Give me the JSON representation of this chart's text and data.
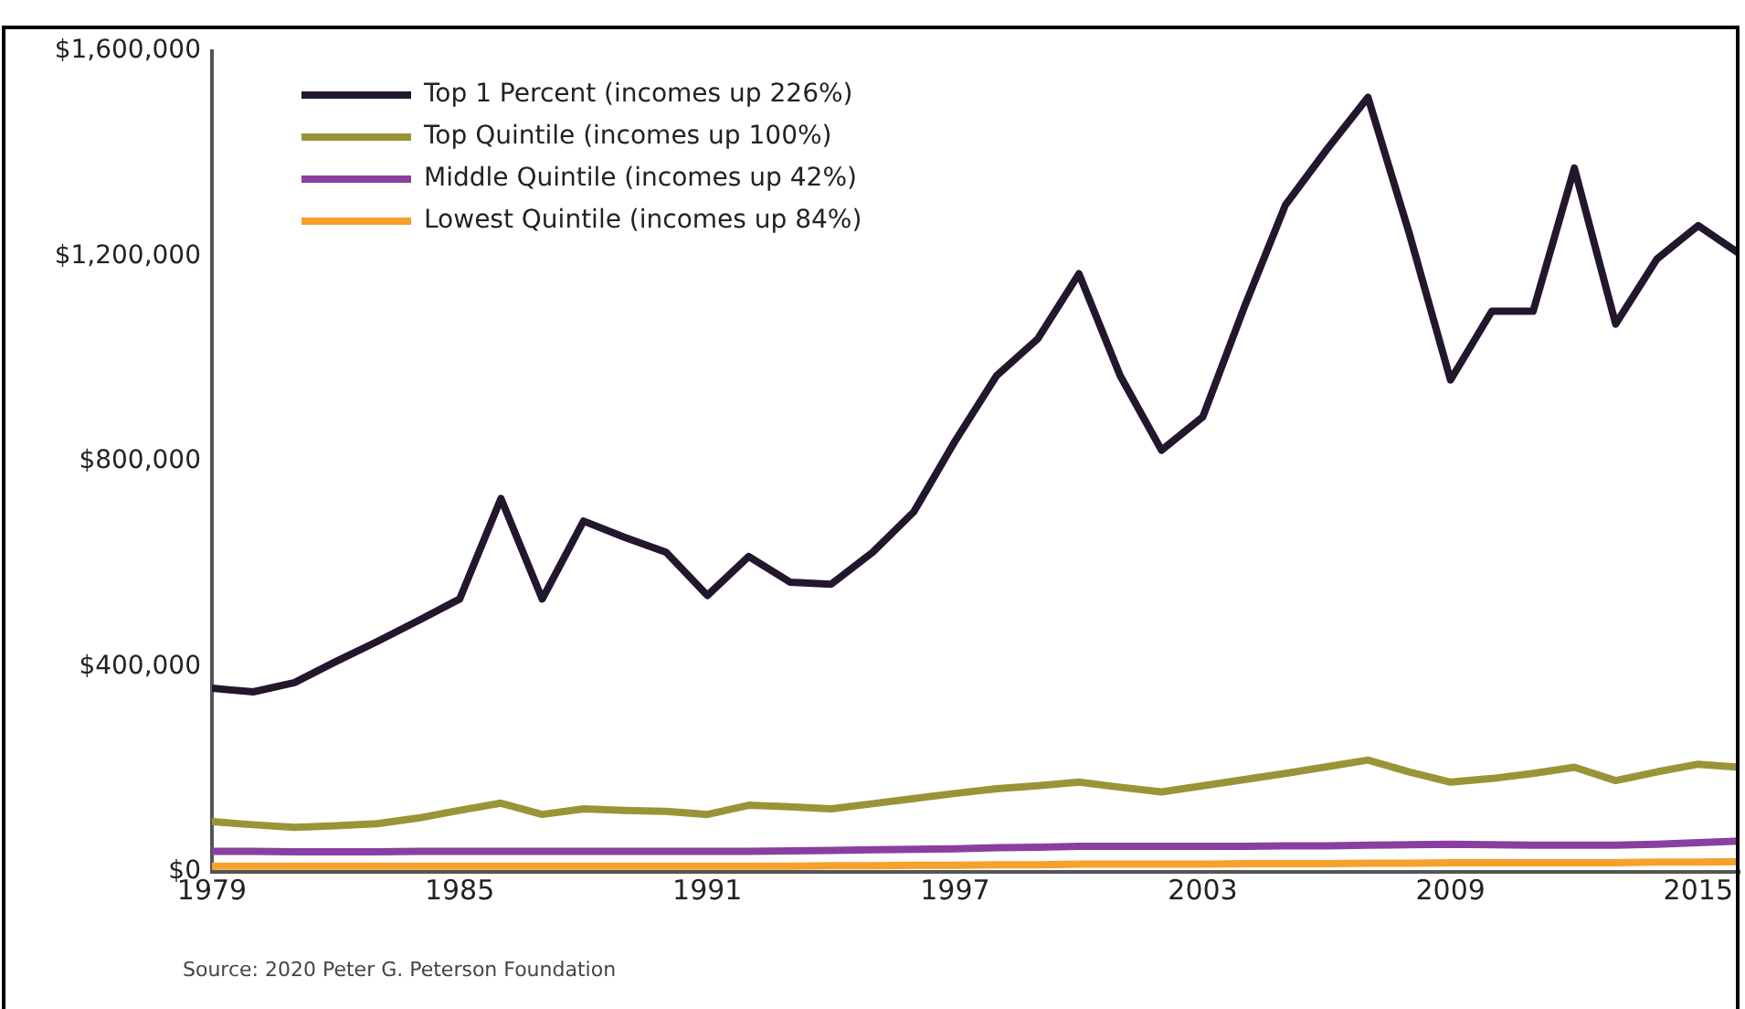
{
  "chart_data": {
    "type": "line",
    "x": [
      1979,
      1980,
      1981,
      1982,
      1983,
      1984,
      1985,
      1986,
      1987,
      1988,
      1989,
      1990,
      1991,
      1992,
      1993,
      1994,
      1995,
      1996,
      1997,
      1998,
      1999,
      2000,
      2001,
      2002,
      2003,
      2004,
      2005,
      2006,
      2007,
      2008,
      2009,
      2010,
      2011,
      2012,
      2013,
      2014,
      2015,
      2016
    ],
    "series": [
      {
        "name": "Top 1 Percent (incomes up 226%)",
        "color": "#23172e",
        "values": [
          358000,
          351000,
          369000,
          410000,
          449000,
          490000,
          532000,
          728000,
          532000,
          684000,
          652000,
          623000,
          539000,
          615000,
          565000,
          561000,
          623000,
          702000,
          840000,
          967000,
          1039000,
          1166000,
          967000,
          822000,
          887000,
          1100000,
          1300000,
          1408000,
          1510000,
          1245000,
          959000,
          1093000,
          1093000,
          1372000,
          1068000,
          1195000,
          1260000,
          1205000
        ]
      },
      {
        "name": "Top Quintile (incomes up 100%)",
        "color": "#9a9438",
        "values": [
          98000,
          92000,
          87000,
          90000,
          94000,
          105000,
          120000,
          134000,
          112000,
          123000,
          120000,
          118000,
          112000,
          130000,
          127000,
          123000,
          133000,
          143000,
          153000,
          162000,
          168000,
          175000,
          165000,
          156000,
          168000,
          180000,
          192000,
          205000,
          218000,
          195000,
          175000,
          182000,
          192000,
          204000,
          178000,
          195000,
          210000,
          204000
        ]
      },
      {
        "name": "Middle Quintile (incomes up 42%)",
        "color": "#8a3fa0",
        "values": [
          40000,
          40000,
          39000,
          39000,
          39000,
          40000,
          40000,
          40000,
          40000,
          40000,
          40000,
          40000,
          40000,
          40000,
          41000,
          42000,
          43000,
          44000,
          45000,
          47000,
          48000,
          50000,
          50000,
          50000,
          50000,
          50000,
          51000,
          51000,
          52000,
          53000,
          54000,
          53000,
          52000,
          52000,
          52000,
          54000,
          57000,
          60000
        ]
      },
      {
        "name": "Lowest Quintile (incomes up 84%)",
        "color": "#f7a02c",
        "values": [
          11000,
          11000,
          11000,
          11000,
          11000,
          11000,
          11000,
          11000,
          11000,
          11000,
          11000,
          11000,
          11000,
          11000,
          11000,
          12000,
          12000,
          13000,
          13000,
          14000,
          14000,
          15000,
          15000,
          15000,
          15000,
          16000,
          16000,
          16000,
          17000,
          17000,
          18000,
          18000,
          18000,
          18000,
          18000,
          19000,
          19000,
          20000
        ]
      }
    ],
    "xlim": [
      1979,
      2016
    ],
    "xticks": [
      1979,
      1985,
      1991,
      1997,
      2003,
      2009,
      2015
    ],
    "ylim": [
      0,
      1600000
    ],
    "yticks": [
      {
        "value": 0,
        "label": "$0"
      },
      {
        "value": 400000,
        "label": "$400,000"
      },
      {
        "value": 800000,
        "label": "$800,000"
      },
      {
        "value": 1200000,
        "label": "$1,200,000"
      },
      {
        "value": 1600000,
        "label": "$1,600,000"
      }
    ],
    "grid": false,
    "legend": "top left",
    "marker": "none",
    "line_style": "solid",
    "annotations": [
      "Source: 2020 Peter G. Peterson Foundation"
    ]
  }
}
